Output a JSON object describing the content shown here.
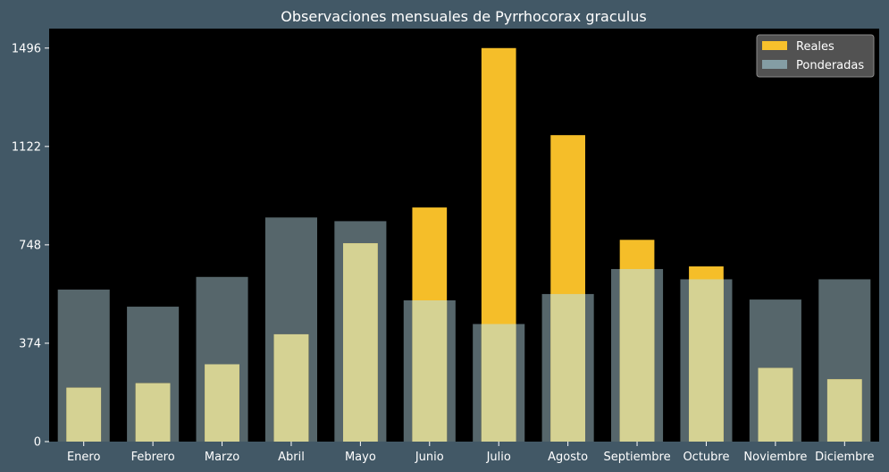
{
  "chart_data": {
    "type": "bar",
    "title": "Observaciones mensuales de Pyrrhocorax graculus",
    "xlabel": "",
    "ylabel": "",
    "categories": [
      "Enero",
      "Febrero",
      "Marzo",
      "Abril",
      "Mayo",
      "Junio",
      "Julio",
      "Agosto",
      "Septiembre",
      "Octubre",
      "Noviembre",
      "Diciembre"
    ],
    "yticks": [
      0,
      374,
      748,
      1122,
      1496
    ],
    "ylim": [
      0,
      1570
    ],
    "series": [
      {
        "name": "Ponderadas",
        "color": "#8aa5ad",
        "values": [
          578,
          513,
          626,
          852,
          838,
          537,
          447,
          561,
          656,
          617,
          540,
          617
        ]
      },
      {
        "name": "Reales",
        "color": "#ffc62b",
        "values": [
          205,
          222,
          294,
          408,
          754,
          890,
          1496,
          1165,
          767,
          666,
          280,
          237
        ]
      }
    ],
    "legend": {
      "position": "top-right",
      "entries": [
        "Reales",
        "Ponderadas"
      ]
    },
    "grid": false,
    "background": "#000000",
    "figure_background": "#425866"
  }
}
